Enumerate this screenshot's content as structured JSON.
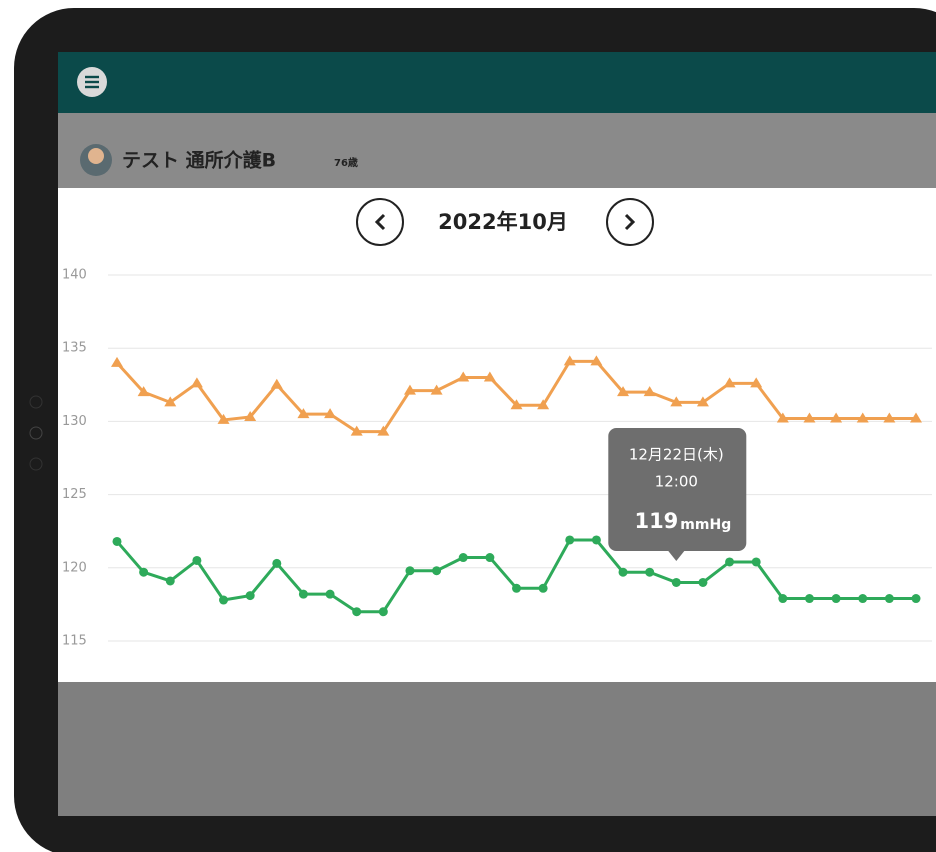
{
  "header": {
    "user_name": "テスト 通所介護B",
    "age": "76歳"
  },
  "month_title": "2022年10月",
  "tooltip": {
    "date": "12月22日(木)",
    "time": "12:00",
    "value": 119,
    "unit": "mmHg"
  },
  "chart_data": {
    "type": "line",
    "ylim": [
      115,
      140
    ],
    "yticks": [
      115,
      120,
      125,
      130,
      135,
      140
    ],
    "grid": true,
    "series": [
      {
        "color": "#f0a050",
        "marker": "triangle",
        "values": [
          134,
          132,
          131.3,
          132.6,
          130.1,
          130.3,
          132.5,
          130.5,
          130.5,
          129.3,
          129.3,
          132.1,
          132.1,
          133,
          133,
          131.1,
          131.1,
          134.1,
          134.1,
          132,
          132,
          131.3,
          131.3,
          132.6,
          132.6,
          130.2,
          130.2,
          130.2,
          130.2,
          130.2,
          130.2
        ]
      },
      {
        "color": "#2eaa5a",
        "marker": "circle",
        "values": [
          121.8,
          119.7,
          119.1,
          120.5,
          117.8,
          118.1,
          120.3,
          118.2,
          118.2,
          117,
          117,
          119.8,
          119.8,
          120.7,
          120.7,
          118.6,
          118.6,
          121.9,
          121.9,
          119.7,
          119.7,
          119,
          119,
          120.4,
          120.4,
          117.9,
          117.9,
          117.9,
          117.9,
          117.9,
          117.9
        ]
      }
    ]
  }
}
